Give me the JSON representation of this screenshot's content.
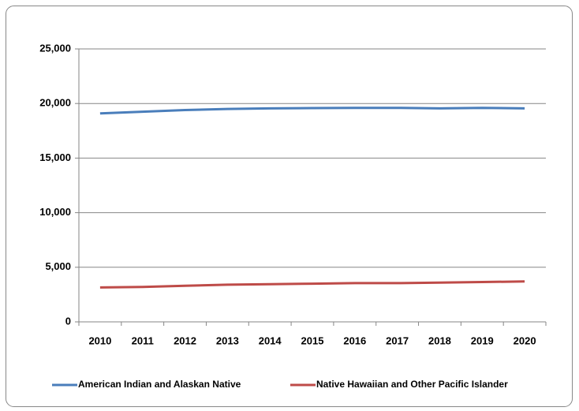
{
  "chart_data": {
    "type": "line",
    "categories": [
      "2010",
      "2011",
      "2012",
      "2013",
      "2014",
      "2015",
      "2016",
      "2017",
      "2018",
      "2019",
      "2020"
    ],
    "series": [
      {
        "name": "American Indian and Alaskan Native",
        "color": "#4a7ebb",
        "values": [
          19100,
          19250,
          19400,
          19500,
          19550,
          19580,
          19600,
          19600,
          19550,
          19600,
          19550
        ]
      },
      {
        "name": "Native Hawaiian and Other Pacific Islander",
        "color": "#be4b48",
        "values": [
          3150,
          3200,
          3300,
          3400,
          3450,
          3500,
          3550,
          3550,
          3600,
          3650,
          3700
        ]
      }
    ],
    "ylim": [
      0,
      25000
    ],
    "yticks": [
      0,
      {
        "value": 5000,
        "label": "5,000"
      },
      {
        "value": 10000,
        "label": "10,000"
      },
      {
        "value": 15000,
        "label": "15,000"
      },
      {
        "value": 20000,
        "label": "20,000"
      },
      {
        "value": 25000,
        "label": "25,000"
      }
    ],
    "grid": true,
    "legend": "bottom"
  }
}
